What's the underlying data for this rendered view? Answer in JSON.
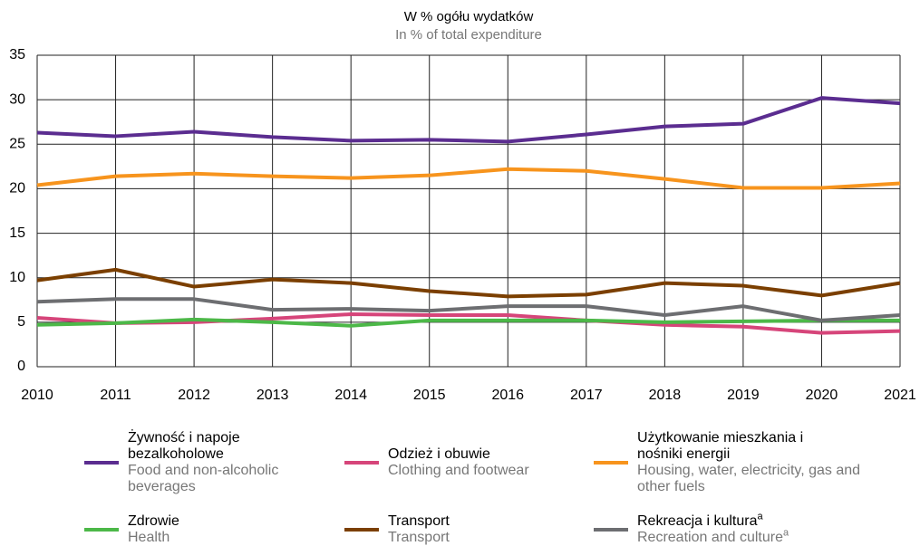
{
  "chart_data": {
    "type": "line",
    "title": "W % ogółu wydatków",
    "subtitle": "In % of total expenditure",
    "categories": [
      "2010",
      "2011",
      "2012",
      "2013",
      "2014",
      "2015",
      "2016",
      "2017",
      "2018",
      "2019",
      "2020",
      "2021"
    ],
    "ylim": [
      0,
      35
    ],
    "yticks": [
      0,
      5,
      10,
      15,
      20,
      25,
      30,
      35
    ],
    "grid": true,
    "series": [
      {
        "name": "Żywność i napoje bezalkoholowe",
        "name_en": "Food and non-alcoholic beverages",
        "color": "#5b2d90",
        "values": [
          26.3,
          25.9,
          26.4,
          25.8,
          25.4,
          25.5,
          25.3,
          26.1,
          27.0,
          27.3,
          30.2,
          29.6
        ]
      },
      {
        "name": "Odzież i obuwie",
        "name_en": "Clothing and footwear",
        "color": "#d6457a",
        "values": [
          5.5,
          4.9,
          5.0,
          5.4,
          5.9,
          5.8,
          5.8,
          5.2,
          4.7,
          4.5,
          3.8,
          4.0
        ]
      },
      {
        "name": "Użytkowanie mieszkania i nośniki energii",
        "name_en": "Housing, water, electricity, gas and other fuels",
        "color": "#f7941d",
        "values": [
          20.4,
          21.4,
          21.7,
          21.4,
          21.2,
          21.5,
          22.2,
          22.0,
          21.1,
          20.1,
          20.1,
          20.6
        ]
      },
      {
        "name": "Zdrowie",
        "name_en": "Health",
        "color": "#4cb848",
        "values": [
          4.7,
          4.9,
          5.3,
          5.0,
          4.6,
          5.2,
          5.2,
          5.2,
          5.0,
          5.1,
          5.2,
          5.2
        ]
      },
      {
        "name": "Transport",
        "name_en": "Transport",
        "color": "#7b3f00",
        "values": [
          9.7,
          10.9,
          9.0,
          9.8,
          9.4,
          8.5,
          7.9,
          8.1,
          9.4,
          9.1,
          8.0,
          9.4
        ]
      },
      {
        "name": "Rekreacja i kultura",
        "name_en": "Recreation and culture",
        "footnote": "a",
        "color": "#6d6e71",
        "values": [
          7.3,
          7.6,
          7.6,
          6.4,
          6.5,
          6.3,
          6.8,
          6.8,
          5.8,
          6.8,
          5.2,
          5.8
        ]
      }
    ]
  }
}
